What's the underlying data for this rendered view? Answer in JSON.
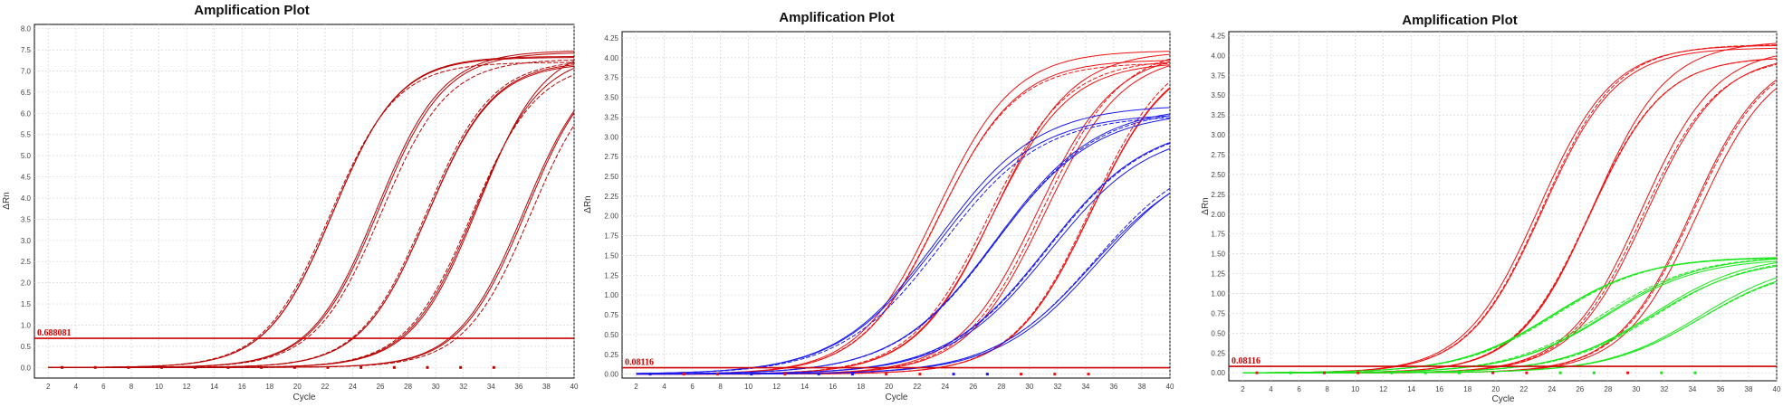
{
  "chart_data": [
    {
      "type": "line",
      "title": "Amplification Plot",
      "xlabel": "Cycle",
      "ylabel": "ΔRn",
      "xlim": [
        1,
        40
      ],
      "ylim": [
        -0.25,
        8.1
      ],
      "xticks": [
        2,
        4,
        6,
        8,
        10,
        12,
        14,
        16,
        18,
        20,
        22,
        24,
        26,
        28,
        30,
        32,
        34,
        36,
        38,
        40
      ],
      "yticks": [
        0.0,
        0.5,
        1.0,
        1.5,
        2.0,
        2.5,
        3.0,
        3.5,
        4.0,
        4.5,
        5.0,
        5.5,
        6.0,
        6.5,
        7.0,
        7.5,
        8.0
      ],
      "ytick_labels": [
        "0.0",
        "0.5",
        "1.0",
        "1.5",
        "2.0",
        "2.5",
        "3.0",
        "3.5",
        "4.0",
        "4.5",
        "5.0",
        "5.5",
        "6.0",
        "6.5",
        "7.0",
        "7.5",
        "8.0"
      ],
      "grid": true,
      "threshold": {
        "value": 0.688081,
        "label": "0.688081",
        "color": "#cc0000"
      },
      "series_color": "#b80000",
      "curve_groups": [
        {
          "midpoint": 22.6,
          "plateau": 7.32,
          "slope": 0.42,
          "replicates": 3
        },
        {
          "midpoint": 26.0,
          "plateau": 7.32,
          "slope": 0.42,
          "replicates": 3
        },
        {
          "midpoint": 29.3,
          "plateau": 7.38,
          "slope": 0.42,
          "replicates": 3
        },
        {
          "midpoint": 32.8,
          "plateau": 7.42,
          "slope": 0.42,
          "replicates": 3
        },
        {
          "midpoint": 36.6,
          "plateau": 7.4,
          "slope": 0.42,
          "replicates": 3
        }
      ]
    },
    {
      "type": "line",
      "title": "Amplification Plot",
      "xlabel": "Cycle",
      "ylabel": "ΔRn",
      "xlim": [
        1,
        40
      ],
      "ylim": [
        -0.05,
        4.33
      ],
      "xticks": [
        2,
        4,
        6,
        8,
        10,
        12,
        14,
        16,
        18,
        20,
        22,
        24,
        26,
        28,
        30,
        32,
        34,
        36,
        38,
        40
      ],
      "yticks": [
        0.0,
        0.25,
        0.5,
        0.75,
        1.0,
        1.25,
        1.5,
        1.75,
        2.0,
        2.25,
        2.5,
        2.75,
        3.0,
        3.25,
        3.5,
        3.75,
        4.0,
        4.25
      ],
      "ytick_labels": [
        "0.00",
        "0.25",
        "0.50",
        "0.75",
        "1.00",
        "1.25",
        "1.50",
        "1.75",
        "2.00",
        "2.25",
        "2.50",
        "2.75",
        "3.00",
        "3.25",
        "3.50",
        "3.75",
        "4.00",
        "4.25"
      ],
      "grid": true,
      "threshold": {
        "value": 0.08116,
        "label": "0.08116",
        "color": "#cc0000"
      },
      "curve_groups": [
        {
          "color": "#ee1111",
          "midpoint": 23.5,
          "plateau": 4.0,
          "slope": 0.36,
          "replicates": 3
        },
        {
          "color": "#ee1111",
          "midpoint": 27.3,
          "plateau": 4.05,
          "slope": 0.36,
          "replicates": 3
        },
        {
          "color": "#ee1111",
          "midpoint": 30.8,
          "plateau": 4.1,
          "slope": 0.36,
          "replicates": 3
        },
        {
          "color": "#ee1111",
          "midpoint": 34.4,
          "plateau": 4.1,
          "slope": 0.36,
          "replicates": 3
        },
        {
          "color": "#1a1aee",
          "midpoint": 23.6,
          "plateau": 3.35,
          "slope": 0.28,
          "replicates": 3
        },
        {
          "color": "#1a1aee",
          "midpoint": 27.4,
          "plateau": 3.3,
          "slope": 0.28,
          "replicates": 3
        },
        {
          "color": "#1a1aee",
          "midpoint": 31.4,
          "plateau": 3.2,
          "slope": 0.28,
          "replicates": 3
        },
        {
          "color": "#1a1aee",
          "midpoint": 34.8,
          "plateau": 2.8,
          "slope": 0.28,
          "replicates": 3
        }
      ]
    },
    {
      "type": "line",
      "title": "Amplification Plot",
      "xlabel": "Cycle",
      "ylabel": "ΔRn",
      "xlim": [
        1,
        40
      ],
      "ylim": [
        -0.1,
        4.3
      ],
      "xticks": [
        2,
        4,
        6,
        8,
        10,
        12,
        14,
        16,
        18,
        20,
        22,
        24,
        26,
        28,
        30,
        32,
        34,
        36,
        38,
        40
      ],
      "yticks": [
        0.0,
        0.25,
        0.5,
        0.75,
        1.0,
        1.25,
        1.5,
        1.75,
        2.0,
        2.25,
        2.5,
        2.75,
        3.0,
        3.25,
        3.5,
        3.75,
        4.0,
        4.25
      ],
      "ytick_labels": [
        "0.00",
        "0.25",
        "0.50",
        "0.75",
        "1.00",
        "1.25",
        "1.50",
        "1.75",
        "2.00",
        "2.25",
        "2.50",
        "2.75",
        "3.00",
        "3.25",
        "3.50",
        "3.75",
        "4.00",
        "4.25"
      ],
      "grid": true,
      "threshold": {
        "value": 0.08116,
        "label": "0.08116",
        "color": "#cc0000"
      },
      "curve_groups": [
        {
          "color": "#ee1111",
          "midpoint": 23.2,
          "plateau": 4.05,
          "slope": 0.38,
          "replicates": 3
        },
        {
          "color": "#ee1111",
          "midpoint": 26.9,
          "plateau": 4.1,
          "slope": 0.38,
          "replicates": 3
        },
        {
          "color": "#ee1111",
          "midpoint": 30.5,
          "plateau": 4.1,
          "slope": 0.38,
          "replicates": 3
        },
        {
          "color": "#ee1111",
          "midpoint": 34.2,
          "plateau": 4.1,
          "slope": 0.38,
          "replicates": 3
        },
        {
          "color": "#19e619",
          "midpoint": 24.2,
          "plateau": 1.5,
          "slope": 0.3,
          "replicates": 3
        },
        {
          "color": "#19e619",
          "midpoint": 27.9,
          "plateau": 1.45,
          "slope": 0.3,
          "replicates": 3
        },
        {
          "color": "#19e619",
          "midpoint": 31.3,
          "plateau": 1.45,
          "slope": 0.3,
          "replicates": 3
        },
        {
          "color": "#19e619",
          "midpoint": 34.8,
          "plateau": 1.4,
          "slope": 0.3,
          "replicates": 3
        }
      ]
    }
  ]
}
